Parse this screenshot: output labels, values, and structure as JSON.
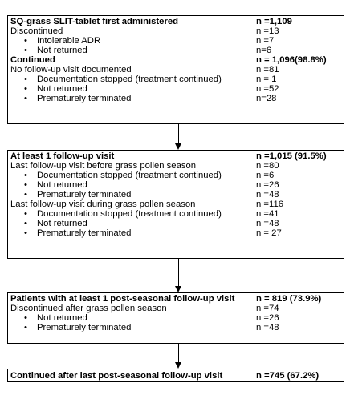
{
  "box1": {
    "rows": [
      {
        "label": "SQ-grass SLIT-tablet first administered",
        "value": "n =1,109"
      },
      {
        "label": "Discontinued",
        "value": "n =13"
      },
      {
        "label": "Intolerable ADR",
        "value": "n =7"
      },
      {
        "label": "Not returned",
        "value": "n=6"
      },
      {
        "label": "Continued",
        "value": "n = 1,096(98.8%)"
      },
      {
        "label": "No follow-up visit documented",
        "value": "n =81"
      },
      {
        "label": "Documentation stopped (treatment continued)",
        "value": "n = 1"
      },
      {
        "label": "Not returned",
        "value": "n =52"
      },
      {
        "label": "Prematurely terminated",
        "value": "n=28"
      }
    ]
  },
  "box2": {
    "rows": [
      {
        "label": "At least 1 follow-up visit",
        "value": "n =1,015 (91.5%)"
      },
      {
        "label": "Last follow-up visit before grass pollen season",
        "value": "n =80"
      },
      {
        "label": "Documentation stopped (treatment continued)",
        "value": "n =6"
      },
      {
        "label": "Not returned",
        "value": "n =26"
      },
      {
        "label": "Prematurely terminated",
        "value": "n =48"
      },
      {
        "label": "Last follow-up visit during grass pollen season",
        "value": "n =116"
      },
      {
        "label": "Documentation stopped (treatment continued)",
        "value": "n =41"
      },
      {
        "label": "Not returned",
        "value": "n =48"
      },
      {
        "label": "Prematurely terminated",
        "value": "n = 27"
      }
    ]
  },
  "box3": {
    "rows": [
      {
        "label": "Patients with at least 1 post-seasonal follow-up visit",
        "value": "n = 819 (73.9%)"
      },
      {
        "label": "Discontinued after grass pollen season",
        "value": "n =74"
      },
      {
        "label": "Not returned",
        "value": "n =26"
      },
      {
        "label": "Prematurely terminated",
        "value": "n =48"
      }
    ]
  },
  "box4": {
    "rows": [
      {
        "label": "Continued after last post-seasonal follow-up visit",
        "value": "n =745 (67.2%)"
      }
    ]
  },
  "bullet_glyph": "•"
}
